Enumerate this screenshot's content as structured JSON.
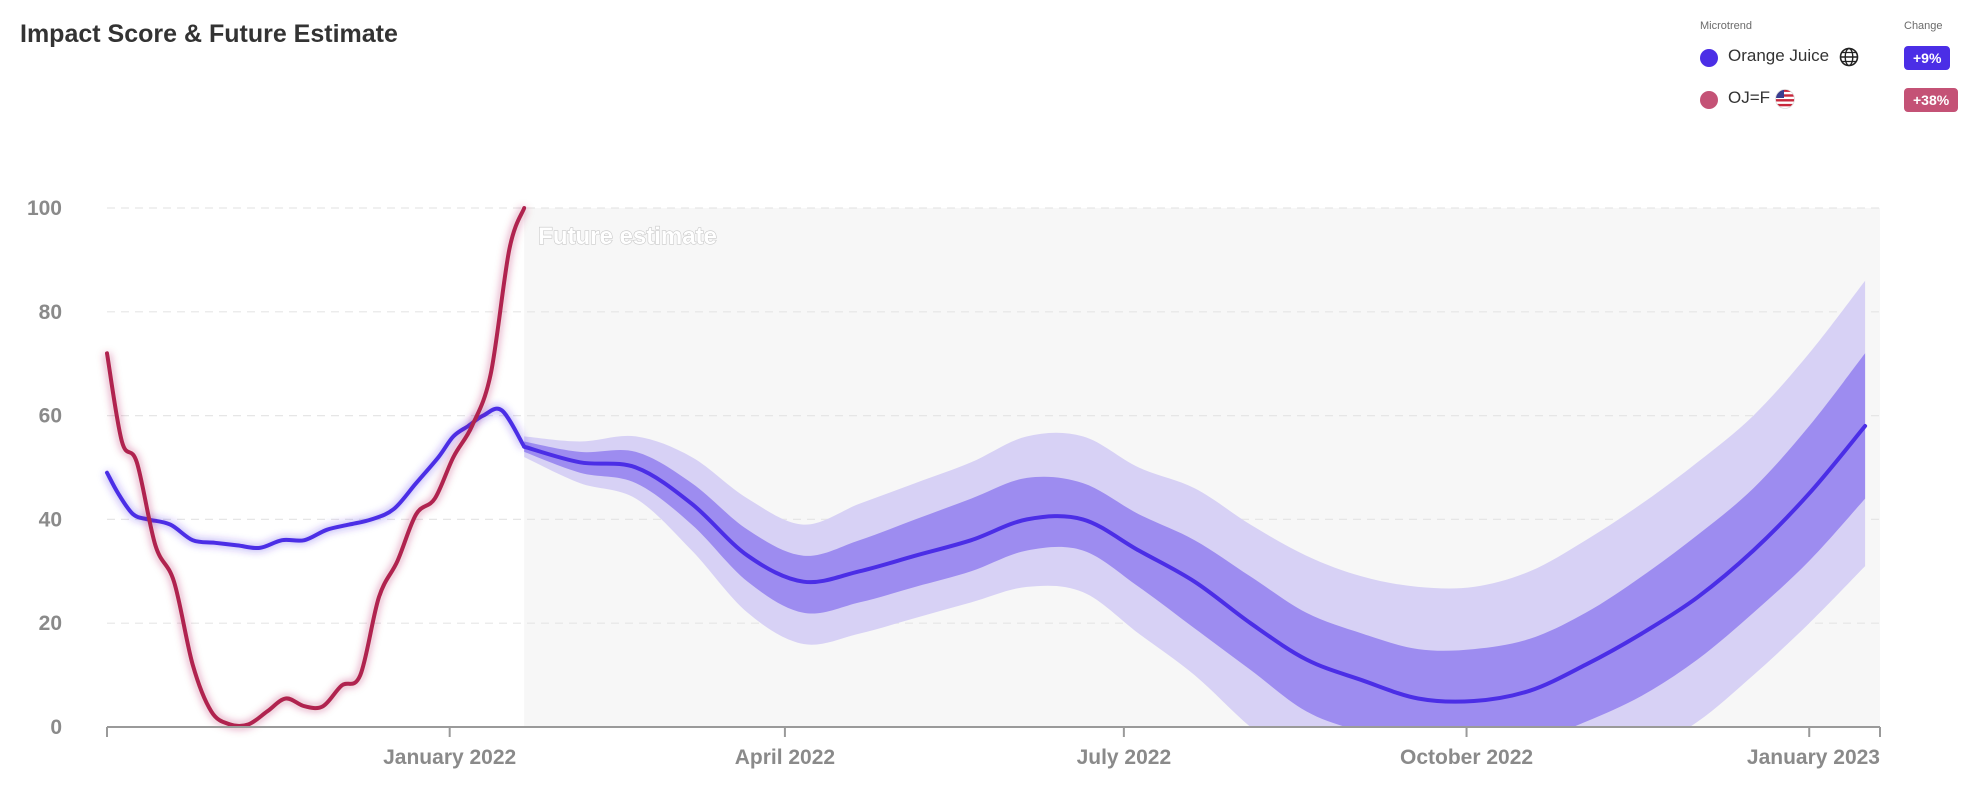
{
  "title": "Impact Score & Future Estimate",
  "legend": {
    "microtrend_header": "Microtrend",
    "change_header": "Change",
    "items": [
      {
        "name": "Orange Juice",
        "icon": "globe-icon",
        "change": "+9%",
        "color": "#4b2ee6",
        "badge_color": "#4b2ee6"
      },
      {
        "name": "OJ=F",
        "icon": "us-flag-icon",
        "change": "+38%",
        "color": "#c45276",
        "badge_color": "#c45276"
      }
    ]
  },
  "chart_data": {
    "type": "line",
    "title": "Impact Score & Future Estimate",
    "xlabel": "",
    "ylabel": "",
    "ylim": [
      0,
      100
    ],
    "yticks": [
      0,
      20,
      40,
      60,
      80,
      100
    ],
    "grid": true,
    "xlim": [
      "2021-10-01",
      "2023-01-20"
    ],
    "xticks": [
      {
        "date": "2022-01-01",
        "label": "January 2022"
      },
      {
        "date": "2022-04-01",
        "label": "April 2022"
      },
      {
        "date": "2022-07-01",
        "label": "July 2022"
      },
      {
        "date": "2022-10-01",
        "label": "October 2022"
      },
      {
        "date": "2023-01-01",
        "label": "January 2023"
      }
    ],
    "forecast_region": {
      "start": "2022-01-21",
      "end": "2023-01-20",
      "label": "Future estimate"
    },
    "series": [
      {
        "name": "Orange Juice",
        "color": "#4b2ee6",
        "x": [
          "2021-10-01",
          "2021-10-04",
          "2021-10-08",
          "2021-10-12",
          "2021-10-18",
          "2021-10-24",
          "2021-10-30",
          "2021-11-05",
          "2021-11-11",
          "2021-11-17",
          "2021-11-23",
          "2021-11-29",
          "2021-12-05",
          "2021-12-11",
          "2021-12-17",
          "2021-12-23",
          "2021-12-29",
          "2022-01-02",
          "2022-01-06",
          "2022-01-10",
          "2022-01-15",
          "2022-01-21"
        ],
        "values": [
          49,
          45,
          41,
          40,
          39,
          36,
          35.5,
          35,
          34.5,
          36,
          36,
          38,
          39,
          40,
          42,
          47,
          52,
          56,
          58,
          60,
          61,
          54
        ]
      },
      {
        "name": "OJ=F",
        "color": "#b0234f",
        "x": [
          "2021-10-01",
          "2021-10-05",
          "2021-10-09",
          "2021-10-14",
          "2021-10-19",
          "2021-10-24",
          "2021-10-29",
          "2021-11-03",
          "2021-11-08",
          "2021-11-13",
          "2021-11-18",
          "2021-11-23",
          "2021-11-28",
          "2021-12-03",
          "2021-12-08",
          "2021-12-13",
          "2021-12-18",
          "2021-12-23",
          "2021-12-28",
          "2022-01-02",
          "2022-01-07",
          "2022-01-12",
          "2022-01-17",
          "2022-01-21"
        ],
        "values": [
          72,
          55,
          51,
          35,
          28,
          12,
          3,
          0.5,
          0.5,
          3,
          5.5,
          4,
          4,
          8,
          10,
          25,
          32,
          41,
          44,
          52,
          58,
          68,
          92,
          100
        ]
      },
      {
        "name": "Orange Juice estimate",
        "color": "#4b2ee6",
        "x": [
          "2022-01-21",
          "2022-02-05",
          "2022-02-20",
          "2022-03-07",
          "2022-03-22",
          "2022-04-06",
          "2022-04-21",
          "2022-05-06",
          "2022-05-21",
          "2022-06-05",
          "2022-06-20",
          "2022-07-05",
          "2022-07-20",
          "2022-08-04",
          "2022-08-19",
          "2022-09-03",
          "2022-09-18",
          "2022-10-03",
          "2022-10-18",
          "2022-11-02",
          "2022-11-17",
          "2022-12-02",
          "2022-12-17",
          "2023-01-01",
          "2023-01-16"
        ],
        "values": [
          54,
          51,
          50,
          43,
          33,
          28,
          30,
          33,
          36,
          40,
          40,
          34,
          28,
          20,
          13,
          9,
          5.5,
          5,
          7,
          12,
          18,
          25,
          34,
          45,
          58
        ],
        "band_inner": {
          "lower": [
            53,
            49,
            47,
            39,
            28,
            22,
            24,
            27,
            30,
            34,
            34,
            27,
            19,
            11,
            3,
            -1,
            -4,
            -5,
            -3,
            1,
            6,
            13,
            22,
            32,
            44
          ],
          "upper": [
            55,
            53,
            53,
            47,
            38,
            33,
            36,
            40,
            44,
            48,
            47,
            41,
            36,
            29,
            22,
            18,
            15,
            15,
            17,
            22,
            29,
            37,
            46,
            58,
            72
          ]
        },
        "band_outer": {
          "lower": [
            52,
            47,
            44,
            34,
            22,
            16,
            18,
            21,
            24,
            27,
            26,
            18,
            10,
            0,
            -8,
            -13,
            -16,
            -17,
            -15,
            -11,
            -5,
            1,
            10,
            20,
            31
          ],
          "upper": [
            56,
            55,
            56,
            52,
            44,
            39,
            43,
            47,
            51,
            56,
            56,
            50,
            46,
            39,
            33,
            29,
            27,
            27,
            30,
            36,
            43,
            51,
            60,
            72,
            86
          ]
        }
      }
    ]
  }
}
